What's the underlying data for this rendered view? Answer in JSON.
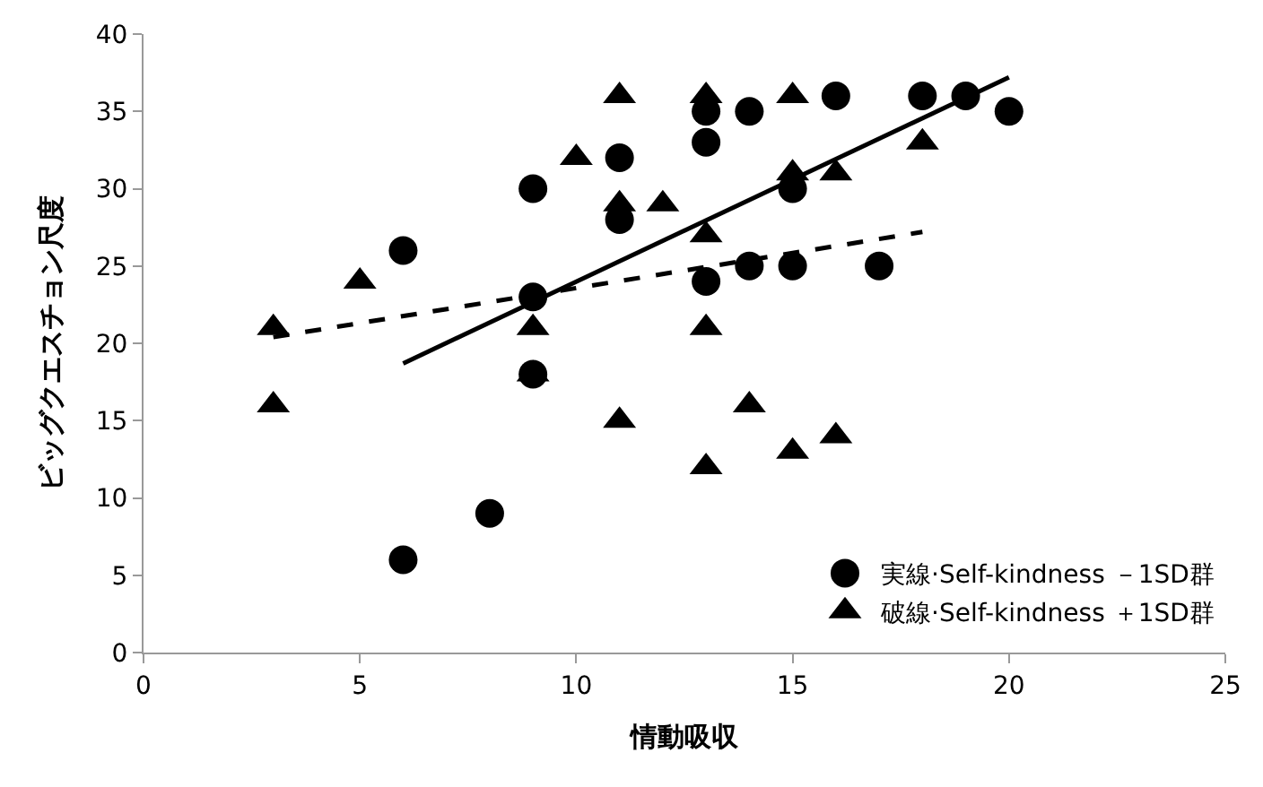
{
  "chart_data": {
    "type": "scatter",
    "xlabel": "情動吸収",
    "ylabel": "ビッグクエスチョン尺度",
    "xlim": [
      0,
      25
    ],
    "xticks": [
      0,
      5,
      10,
      15,
      20,
      25
    ],
    "ylim": [
      0,
      40
    ],
    "yticks": [
      0,
      5,
      10,
      15,
      20,
      25,
      30,
      35,
      40
    ],
    "legend": "bottom right",
    "series": [
      {
        "name": "実線·Self-kindness －1SD群",
        "color": "#000000",
        "marker": "circle",
        "x": [
          6,
          6,
          8,
          9,
          9,
          9,
          11,
          11,
          13,
          13,
          13,
          14,
          14,
          15,
          15,
          16,
          17,
          18,
          19,
          20
        ],
        "values": [
          26,
          6,
          9,
          30,
          23,
          18,
          32,
          28,
          35,
          33,
          24,
          35,
          25,
          30,
          25,
          36,
          25,
          36,
          36,
          35
        ]
      },
      {
        "name": "破線·Self-kindness ＋1SD群",
        "color": "#000000",
        "marker": "triangle",
        "x": [
          3,
          3,
          5,
          9,
          9,
          10,
          11,
          11,
          11,
          12,
          13,
          13,
          13,
          13,
          14,
          15,
          15,
          15,
          16,
          16,
          18
        ],
        "values": [
          21,
          16,
          24,
          21,
          18,
          32,
          36,
          29,
          15,
          29,
          36,
          27,
          21,
          12,
          16,
          36,
          31,
          13,
          31,
          14,
          33
        ]
      },
      {
        "type": "line",
        "color": "#000000",
        "line_style": "solid",
        "marker": "none",
        "x": [
          6,
          20
        ],
        "values": [
          18.7,
          37.2
        ]
      },
      {
        "type": "line",
        "color": "#000000",
        "line_style": "dashed",
        "marker": "none",
        "x": [
          3,
          18
        ],
        "values": [
          20.4,
          27.2
        ]
      }
    ]
  }
}
